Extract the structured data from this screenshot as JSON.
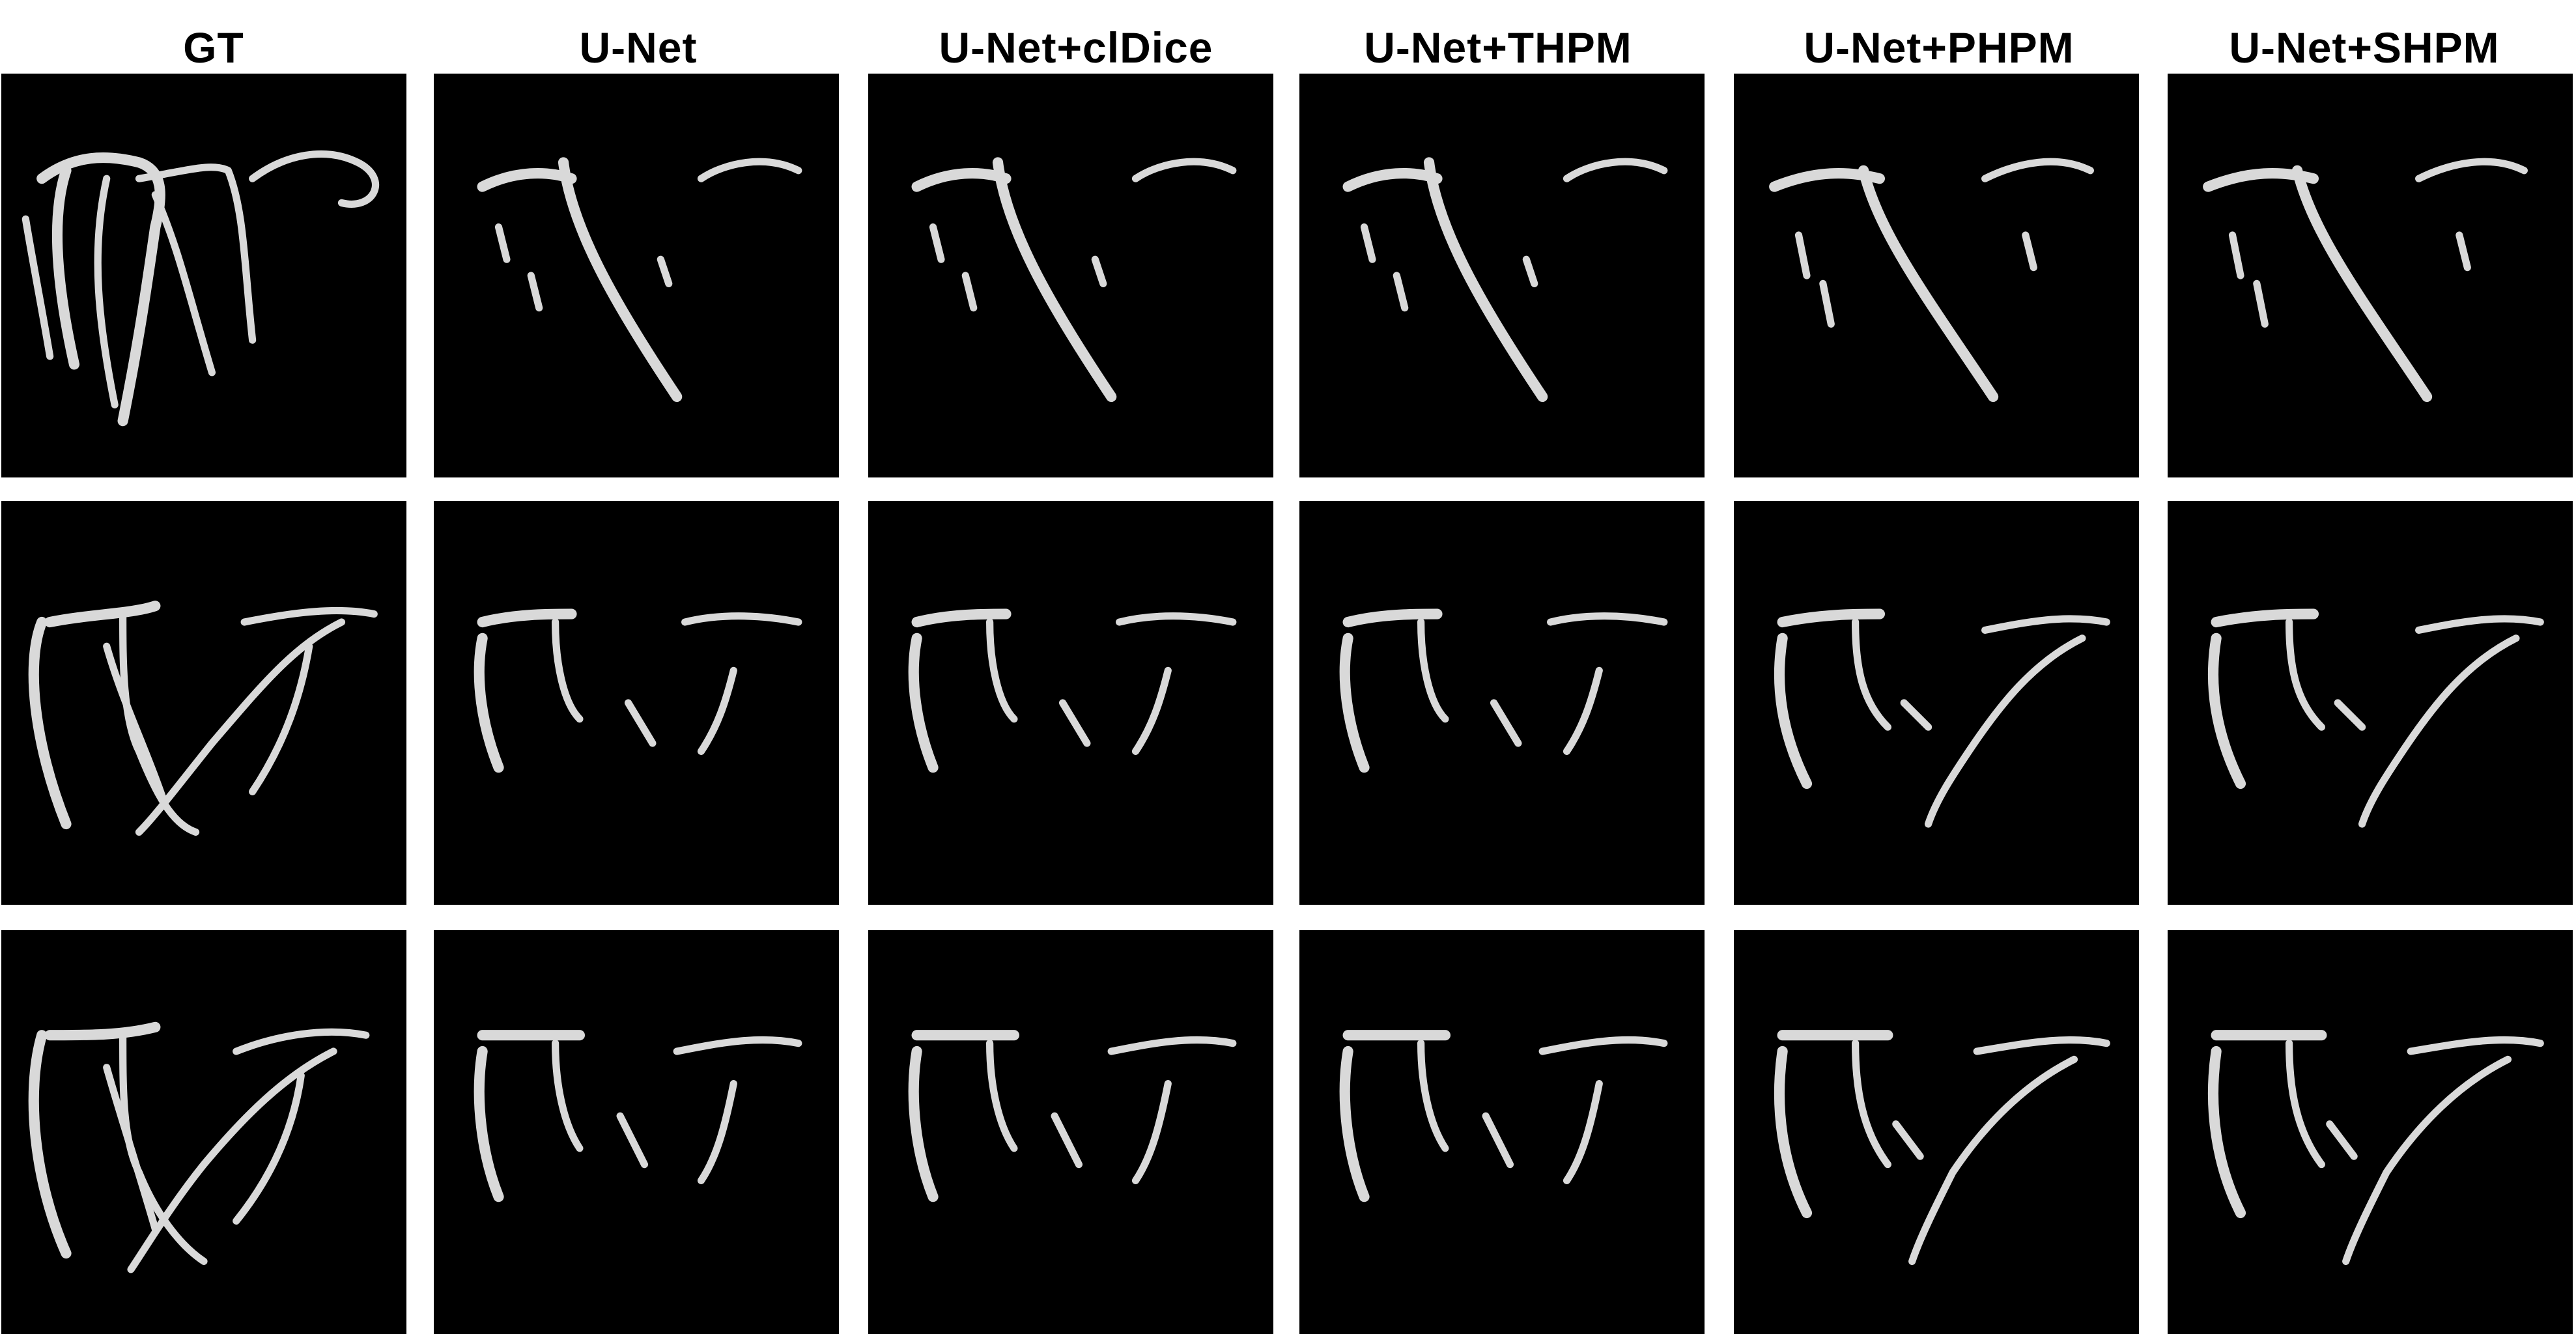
{
  "figure": {
    "columns": [
      {
        "id": "gt",
        "title": "GT"
      },
      {
        "id": "unet",
        "title": "U-Net"
      },
      {
        "id": "unet-cldice",
        "title": "U-Net+clDice"
      },
      {
        "id": "unet-thpm",
        "title": "U-Net+THPM"
      },
      {
        "id": "unet-phpm",
        "title": "U-Net+PHPM"
      },
      {
        "id": "unet-shpm",
        "title": "U-Net+SHPM"
      }
    ],
    "rows": 3,
    "colors": {
      "background": "#000000",
      "vessel": "#d9d9d9",
      "page": "#ffffff"
    }
  }
}
